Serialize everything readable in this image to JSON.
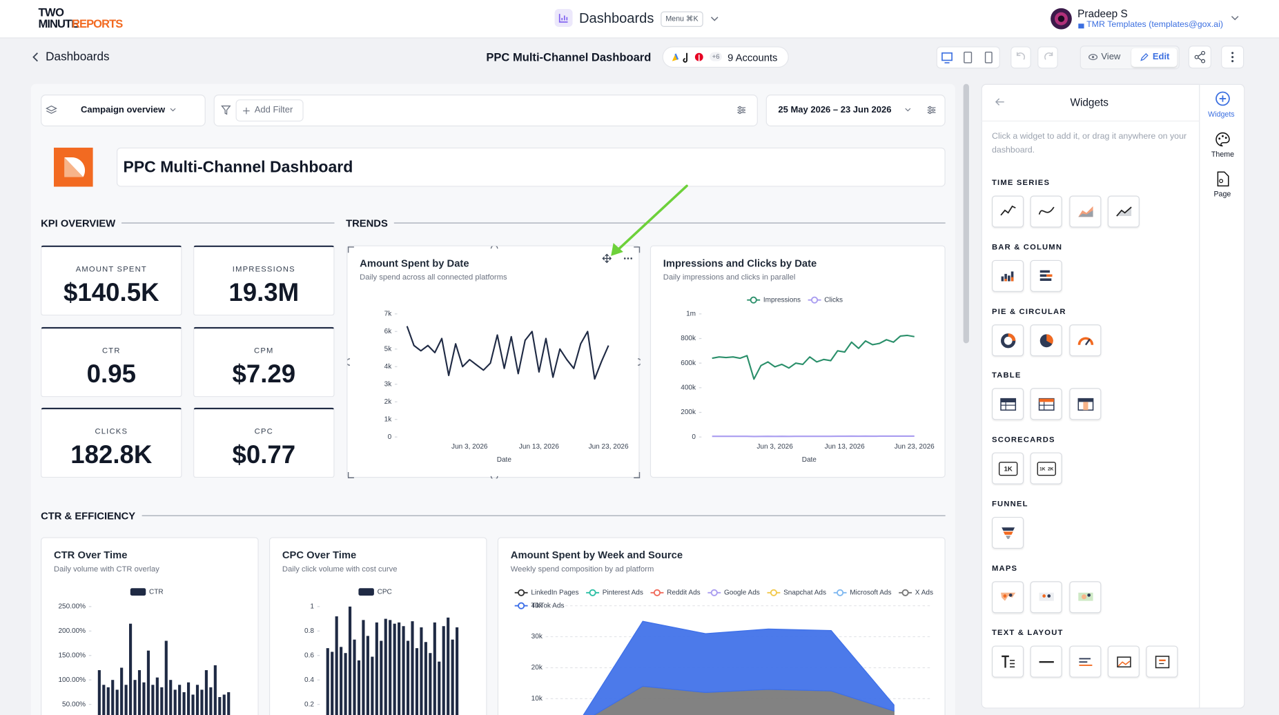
{
  "header": {
    "logo_line1": "TWO",
    "logo_line2a": "MINUTE",
    "logo_line2b": "REPORTS",
    "app_section": "Dashboards",
    "menu_label": "Menu ⌘K",
    "user_name": "Pradeep S",
    "user_workspace": "TMR Templates (templates@gox.ai)"
  },
  "toolbar": {
    "back_label": "Dashboards",
    "dashboard_name": "PPC Multi-Channel Dashboard",
    "accounts_more": "+6",
    "accounts_label": "9 Accounts",
    "view_button": "View",
    "edit_button": "Edit"
  },
  "filters": {
    "page_select": "Campaign overview",
    "add_filter": "Add Filter",
    "date_range": "25 May 2026 – 23 Jun 2026"
  },
  "dashboard": {
    "title": "PPC Multi-Channel Dashboard",
    "sections": [
      "KPI OVERVIEW",
      "TRENDS",
      "CTR & EFFICIENCY"
    ],
    "kpis": [
      {
        "label": "AMOUNT SPENT",
        "value": "$140.5K"
      },
      {
        "label": "IMPRESSIONS",
        "value": "19.3M"
      },
      {
        "label": "CTR",
        "value": "0.95"
      },
      {
        "label": "CPM",
        "value": "$7.29"
      },
      {
        "label": "CLICKS",
        "value": "182.8K"
      },
      {
        "label": "CPC",
        "value": "$0.77"
      }
    ]
  },
  "charts": [
    {
      "type": "line",
      "title": "Amount Spent by Date",
      "subtitle": "Daily spend across all connected platforms",
      "x_label": "Date",
      "categories": [
        null,
        null,
        null,
        null,
        null,
        null,
        null,
        null,
        null,
        "Jun 3, 2026",
        null,
        null,
        null,
        null,
        null,
        null,
        null,
        null,
        null,
        "Jun 13, 2026",
        null,
        null,
        null,
        null,
        null,
        null,
        null,
        null,
        null,
        "Jun 23, 2026"
      ],
      "values": [
        6300,
        5200,
        4900,
        5200,
        4800,
        5600,
        3500,
        5300,
        4000,
        4400,
        4100,
        3800,
        4200,
        5800,
        3900,
        5700,
        3600,
        5500,
        6000,
        3700,
        5600,
        3400,
        5000,
        4400,
        3900,
        5300,
        6000,
        3300,
        4300,
        5200
      ],
      "color": "#1f2a44",
      "ylim": [
        0,
        7000
      ],
      "yticks": [
        0,
        {
          "value": 1000,
          "label": "1k"
        },
        {
          "value": 2000,
          "label": "2k"
        },
        {
          "value": 3000,
          "label": "3k"
        },
        {
          "value": 4000,
          "label": "4k"
        },
        {
          "value": 5000,
          "label": "5k"
        },
        {
          "value": 6000,
          "label": "6k"
        },
        {
          "value": 7000,
          "label": "7k"
        }
      ],
      "grid": false
    },
    {
      "type": "line",
      "title": "Impressions and Clicks by Date",
      "subtitle": "Daily impressions and clicks in parallel",
      "x_label": "Date",
      "categories": [
        null,
        null,
        null,
        null,
        null,
        null,
        null,
        null,
        null,
        "Jun 3, 2026",
        null,
        null,
        null,
        null,
        null,
        null,
        null,
        null,
        null,
        "Jun 13, 2026",
        null,
        null,
        null,
        null,
        null,
        null,
        null,
        null,
        null,
        "Jun 23, 2026"
      ],
      "series": [
        {
          "name": "Impressions",
          "color": "#2a8f6a",
          "values": [
            640000,
            650000,
            645000,
            650000,
            640000,
            660000,
            470000,
            580000,
            610000,
            570000,
            590000,
            560000,
            600000,
            590000,
            650000,
            610000,
            630000,
            620000,
            700000,
            690000,
            770000,
            720000,
            780000,
            750000,
            760000,
            790000,
            770000,
            820000,
            825000,
            815000
          ]
        },
        {
          "name": "Clicks",
          "color": "#a99cf0",
          "values": [
            5200,
            5400,
            5100,
            5300,
            5000,
            5500,
            4200,
            4900,
            5100,
            4800,
            5000,
            4700,
            5100,
            5000,
            5400,
            5200,
            5300,
            5200,
            5800,
            5700,
            6300,
            6000,
            6400,
            6200,
            6300,
            6500,
            6400,
            6700,
            6800,
            6700
          ]
        }
      ],
      "ylim": [
        0,
        1000000
      ],
      "yticks": [
        0,
        {
          "value": 200000,
          "label": "200k"
        },
        {
          "value": 400000,
          "label": "400k"
        },
        {
          "value": 600000,
          "label": "600k"
        },
        {
          "value": 800000,
          "label": "800k"
        },
        {
          "value": 1000000,
          "label": "1m"
        }
      ],
      "legend": "top",
      "grid": false
    },
    {
      "type": "bar",
      "title": "CTR Over Time",
      "subtitle": "Daily volume with CTR overlay",
      "series": [
        {
          "name": "CTR",
          "color": "#1f2a44",
          "values": [
            120,
            90,
            85,
            100,
            80,
            125,
            90,
            215,
            100,
            120,
            95,
            160,
            90,
            105,
            85,
            180,
            100,
            80,
            90,
            75,
            95,
            70,
            90,
            80,
            120,
            85,
            130,
            65,
            70,
            75
          ]
        }
      ],
      "ylim": [
        0,
        260
      ],
      "yticks": [
        {
          "value": 50,
          "label": "50.00%"
        },
        {
          "value": 100,
          "label": "100.00%"
        },
        {
          "value": 150,
          "label": "150.00%"
        },
        {
          "value": 200,
          "label": "200.00%"
        },
        {
          "value": 250,
          "label": "250.00%"
        }
      ],
      "legend": "top",
      "grid": false
    },
    {
      "type": "bar",
      "title": "CPC Over Time",
      "subtitle": "Daily click volume with cost curve",
      "series": [
        {
          "name": "CPC",
          "color": "#1f2a44",
          "values": [
            0.66,
            0.63,
            0.92,
            0.67,
            0.62,
            1.0,
            0.73,
            0.56,
            0.89,
            0.76,
            0.59,
            0.87,
            0.72,
            0.9,
            0.89,
            0.86,
            0.87,
            0.84,
            0.72,
            0.88,
            0.66,
            0.83,
            0.71,
            0.62,
            0.87,
            0.55,
            0.84,
            0.91,
            0.73,
            0.83
          ]
        }
      ],
      "ylim": [
        0,
        1
      ],
      "yticks": [
        0.2,
        0.4,
        0.6,
        0.8,
        1
      ],
      "legend": "top",
      "grid": false
    },
    {
      "type": "area",
      "title": "Amount Spent by Week and Source",
      "subtitle": "Weekly spend composition by ad platform",
      "series": [
        {
          "name": "LinkedIn Pages",
          "color": "#333333",
          "values": [
            0,
            0,
            0,
            0,
            0,
            0
          ]
        },
        {
          "name": "Pinterest Ads",
          "color": "#2bbfa4",
          "values": [
            0,
            0,
            0,
            0,
            0,
            0
          ]
        },
        {
          "name": "Reddit Ads",
          "color": "#f06a5a",
          "values": [
            0,
            0,
            0,
            0,
            0,
            0
          ]
        },
        {
          "name": "Google Ads",
          "color": "#a99cf0",
          "values": [
            0,
            0,
            0,
            0,
            0,
            0
          ]
        },
        {
          "name": "Snapchat Ads",
          "color": "#f2c94c",
          "values": [
            0,
            0,
            0,
            0,
            0,
            0
          ]
        },
        {
          "name": "Microsoft Ads",
          "color": "#7fb8f0",
          "values": [
            0,
            0,
            0,
            0,
            0,
            0
          ]
        },
        {
          "name": "X Ads",
          "color": "#777777",
          "values": [
            2000,
            14000,
            12000,
            13000,
            12500,
            6000
          ]
        },
        {
          "name": "TikTok Ads",
          "color": "#3d6fe8",
          "values": [
            1000,
            21000,
            19000,
            19500,
            19500,
            2000
          ]
        }
      ],
      "ylim": [
        0,
        40000
      ],
      "yticks": [
        {
          "value": 10000,
          "label": "10k"
        },
        {
          "value": 20000,
          "label": "20k"
        },
        {
          "value": 30000,
          "label": "30k"
        },
        {
          "value": 40000,
          "label": "40k"
        }
      ],
      "legend": "top-left",
      "grid": true
    }
  ],
  "widgets_panel": {
    "title": "Widgets",
    "hint": "Click a widget to add it, or drag it anywhere on your dashboard.",
    "groups": [
      "TIME SERIES",
      "BAR & COLUMN",
      "PIE & CIRCULAR",
      "TABLE",
      "SCORECARDS",
      "FUNNEL",
      "MAPS",
      "TEXT & LAYOUT"
    ],
    "scorecard_labels": [
      "1K",
      "1K",
      "2K"
    ]
  },
  "side_rail": [
    "Widgets",
    "Theme",
    "Page"
  ]
}
